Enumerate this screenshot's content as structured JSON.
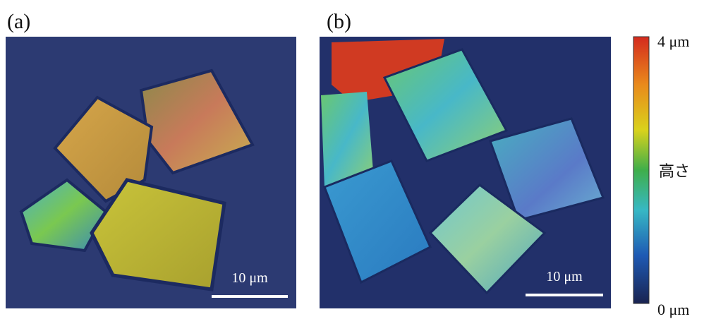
{
  "panels": [
    {
      "label": "(a)",
      "scale_bar": "10 μm"
    },
    {
      "label": "(b)",
      "scale_bar": "10 μm"
    }
  ],
  "colorbar": {
    "max_label": "4 μm",
    "axis_label": "高さ",
    "min_label": "0 μm"
  }
}
